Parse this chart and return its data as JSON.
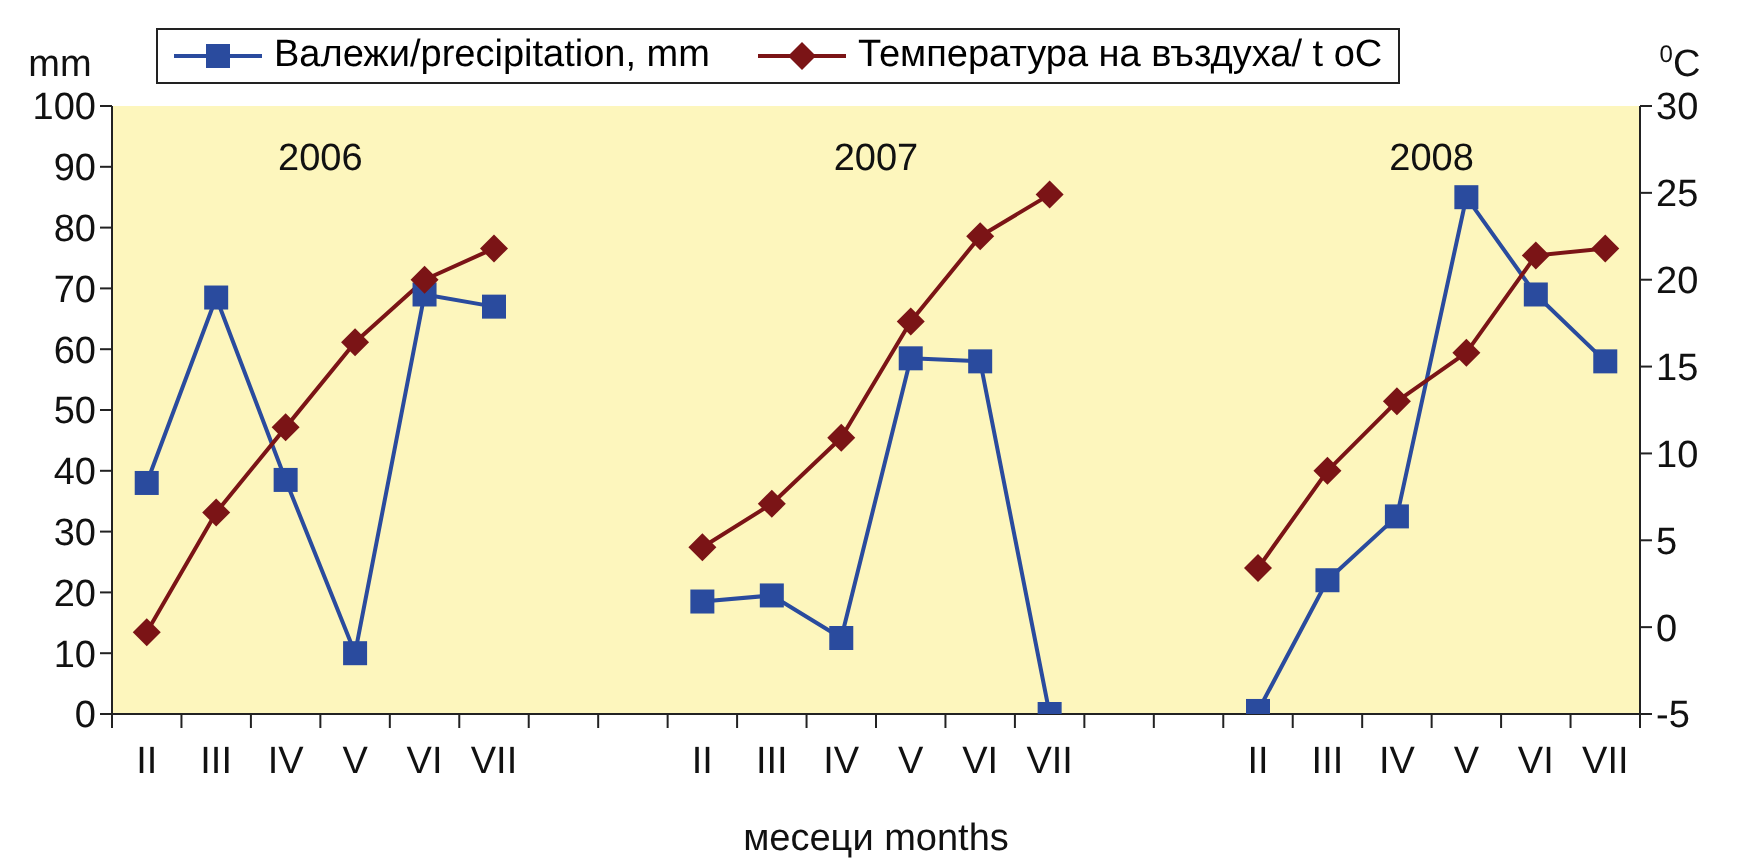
{
  "chart_data": {
    "type": "line",
    "xlabel": "месеци  months",
    "ylabel": "mm",
    "y2label": "$^{0}$C",
    "categories": [
      "II",
      "III",
      "IV",
      "V",
      "VI",
      "VII",
      null,
      null,
      "II",
      "III",
      "IV",
      "V",
      "VI",
      "VII",
      null,
      null,
      "II",
      "III",
      "IV",
      "V",
      "VI",
      "VII"
    ],
    "annotations": [
      "2006",
      "2007",
      "2008"
    ],
    "series": [
      {
        "name": "Валежи/precipitation, mm",
        "color": "#2a4b9e",
        "marker": "square",
        "values": [
          38,
          68.5,
          38.5,
          10,
          69,
          67,
          null,
          null,
          18.5,
          19.5,
          12.5,
          58.5,
          58,
          0,
          null,
          null,
          0.5,
          22,
          32.5,
          85,
          69,
          58
        ]
      },
      {
        "name": "Температура на въздуха/ t oC",
        "color": "#7b1416",
        "marker": "diamond",
        "axis": "y2",
        "values": [
          -0.3,
          6.6,
          11.5,
          16.4,
          20,
          21.8,
          null,
          null,
          4.6,
          7.1,
          10.9,
          17.6,
          22.5,
          24.9,
          null,
          null,
          3.4,
          9,
          13,
          15.8,
          21.4,
          21.8
        ]
      }
    ],
    "ylim": [
      0,
      100
    ],
    "yticks": [
      0,
      10,
      20,
      30,
      40,
      50,
      60,
      70,
      80,
      90,
      100
    ],
    "y2lim": [
      -5,
      30
    ],
    "y2ticks": [
      -5,
      0,
      5,
      10,
      15,
      20,
      25,
      30
    ],
    "legend": "top",
    "line_style": "solid"
  }
}
